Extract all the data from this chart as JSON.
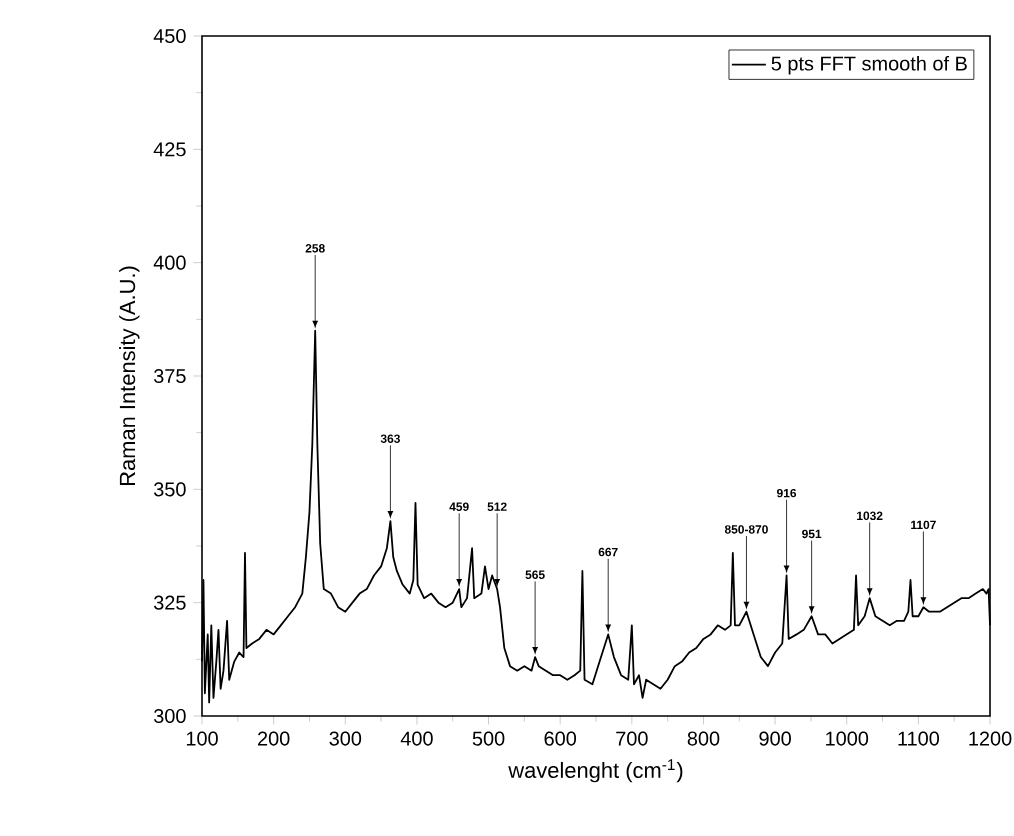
{
  "chart_data": {
    "type": "line",
    "xlabel": "wavelenght (cm$^{-1}$)",
    "ylabel": "Raman Intensity (A.U.)",
    "xlim": [
      100,
      1200
    ],
    "ylim": [
      300,
      450
    ],
    "xticks": [
      100,
      200,
      300,
      400,
      500,
      600,
      700,
      800,
      900,
      1000,
      1100,
      1200
    ],
    "yticks": [
      300,
      325,
      350,
      375,
      400,
      425,
      450
    ],
    "legend": "top right",
    "grid": false,
    "marker": "none",
    "line_style": "solid",
    "series": [
      {
        "name": "5 pts FFT smooth of B",
        "color": "#000000",
        "x": [
          100,
          102,
          104,
          108,
          110,
          113,
          116,
          120,
          123,
          126,
          130,
          135,
          138,
          145,
          152,
          158,
          160,
          162,
          170,
          180,
          190,
          200,
          210,
          220,
          230,
          240,
          245,
          250,
          254,
          258,
          261,
          265,
          270,
          280,
          290,
          300,
          310,
          320,
          330,
          340,
          350,
          358,
          363,
          367,
          372,
          380,
          390,
          395,
          398,
          401,
          410,
          420,
          430,
          440,
          450,
          459,
          462,
          470,
          477,
          480,
          490,
          495,
          500,
          505,
          512,
          516,
          522,
          530,
          540,
          550,
          560,
          565,
          570,
          580,
          590,
          600,
          610,
          620,
          628,
          631,
          634,
          645,
          655,
          667,
          675,
          685,
          695,
          700,
          703,
          710,
          715,
          720,
          730,
          740,
          750,
          760,
          770,
          780,
          790,
          800,
          810,
          820,
          830,
          838,
          841,
          844,
          850,
          860,
          870,
          880,
          890,
          900,
          910,
          916,
          919,
          930,
          940,
          951,
          960,
          970,
          980,
          990,
          1000,
          1010,
          1013,
          1016,
          1025,
          1032,
          1040,
          1050,
          1060,
          1070,
          1080,
          1086,
          1089,
          1092,
          1100,
          1107,
          1115,
          1130,
          1140,
          1150,
          1160,
          1170,
          1180,
          1190,
          1195,
          1198,
          1200
        ],
        "values": [
          312,
          330,
          305,
          318,
          303,
          320,
          304,
          312,
          319,
          306,
          310,
          321,
          308,
          312,
          314,
          313,
          336,
          315,
          316,
          317,
          319,
          318,
          320,
          322,
          324,
          327,
          335,
          345,
          360,
          385,
          360,
          338,
          328,
          327,
          324,
          323,
          325,
          327,
          328,
          331,
          333,
          337,
          343,
          335,
          332,
          329,
          327,
          330,
          347,
          329,
          326,
          327,
          325,
          324,
          325,
          328,
          324,
          326,
          337,
          326,
          327,
          333,
          328,
          331,
          328,
          324,
          315,
          311,
          310,
          311,
          310,
          313,
          311,
          310,
          309,
          309,
          308,
          309,
          310,
          332,
          308,
          307,
          312,
          318,
          313,
          309,
          308,
          320,
          307,
          309,
          304,
          308,
          307,
          306,
          308,
          311,
          312,
          314,
          315,
          317,
          318,
          320,
          319,
          320,
          336,
          320,
          320,
          323,
          318,
          313,
          311,
          314,
          316,
          331,
          317,
          318,
          319,
          322,
          318,
          318,
          316,
          317,
          318,
          319,
          331,
          320,
          322,
          326,
          322,
          321,
          320,
          321,
          321,
          323,
          330,
          322,
          322,
          324,
          323,
          323,
          324,
          325,
          326,
          326,
          327,
          328,
          327,
          328,
          320
        ]
      }
    ],
    "annotations": [
      {
        "text": "258",
        "x": 258,
        "y": 385
      },
      {
        "text": "363",
        "x": 363,
        "y": 343
      },
      {
        "text": "459",
        "x": 459,
        "y": 328
      },
      {
        "text": "512",
        "x": 512,
        "y": 328
      },
      {
        "text": "565",
        "x": 565,
        "y": 313
      },
      {
        "text": "667",
        "x": 667,
        "y": 318
      },
      {
        "text": "850-870",
        "x": 860,
        "y": 323
      },
      {
        "text": "916",
        "x": 916,
        "y": 331
      },
      {
        "text": "951",
        "x": 951,
        "y": 322
      },
      {
        "text": "1032",
        "x": 1032,
        "y": 326
      },
      {
        "text": "1107",
        "x": 1107,
        "y": 324
      }
    ]
  }
}
